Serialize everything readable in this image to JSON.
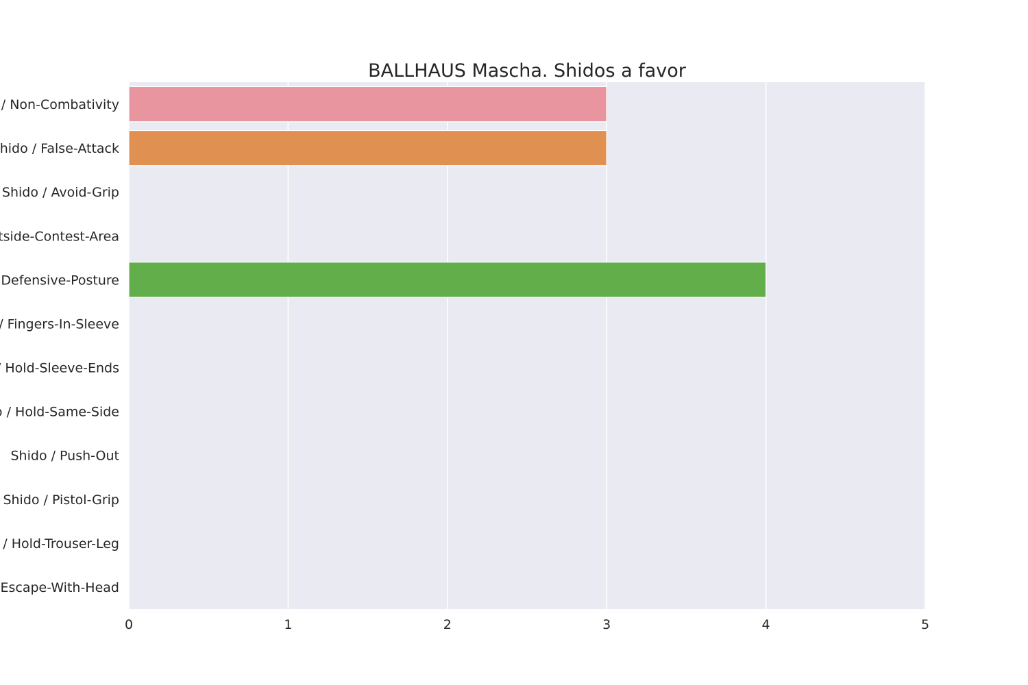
{
  "chart_data": {
    "type": "bar",
    "orientation": "horizontal",
    "title": "BALLHAUS Mascha. Shidos a favor",
    "xlabel": "",
    "ylabel": "",
    "xlim": [
      0,
      5
    ],
    "xticks": [
      0,
      1,
      2,
      3,
      4,
      5
    ],
    "grid": true,
    "legend": "none",
    "categories": [
      "Shido / Non-Combativity",
      "Shido / False-Attack",
      "Shido / Avoid-Grip",
      "Shido / Outside-Contest-Area",
      "Shido / Defensive-Posture",
      "Shido / Fingers-In-Sleeve",
      "Shido / Hold-Sleeve-Ends",
      "Shido / Hold-Same-Side",
      "Shido / Push-Out",
      "Shido / Pistol-Grip",
      "Shido / Hold-Trouser-Leg",
      "Shido / Escape-With-Head"
    ],
    "values": [
      3,
      3,
      0,
      0,
      4,
      0,
      0,
      0,
      0,
      0,
      0,
      0
    ],
    "colors": [
      "#e8959f",
      "#e09152",
      "#b9a44c",
      "#87ab4c",
      "#61ae4a",
      "#4faf7f",
      "#52ab9a",
      "#55a9ae",
      "#58a6c2",
      "#8a9bd4",
      "#c38ad8",
      "#e684c4"
    ],
    "plot_background": "#eaeaf2",
    "grid_color": "#ffffff"
  }
}
